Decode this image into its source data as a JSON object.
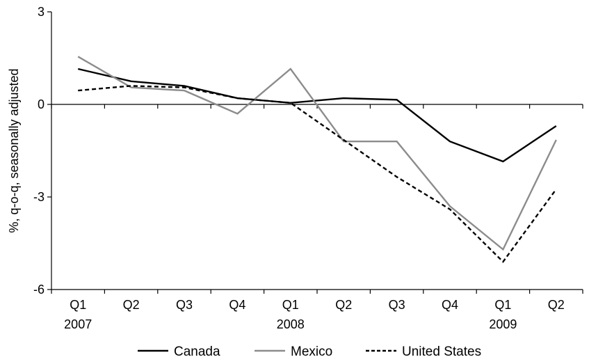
{
  "chart_data": {
    "type": "line",
    "title": "",
    "xlabel": "",
    "ylabel": "%, q-o-q, seasonally adjusted",
    "ylim": [
      -6,
      3
    ],
    "yticks": [
      3,
      0,
      -3,
      -6
    ],
    "y_tick_labels": [
      "3",
      "0",
      "-3",
      "-6"
    ],
    "categories": [
      "Q1",
      "Q2",
      "Q3",
      "Q4",
      "Q1",
      "Q2",
      "Q3",
      "Q4",
      "Q1",
      "Q2"
    ],
    "year_labels": [
      {
        "index": 0,
        "label": "2007"
      },
      {
        "index": 4,
        "label": "2008"
      },
      {
        "index": 8,
        "label": "2009"
      }
    ],
    "grid": false,
    "legend": "bottom",
    "series": [
      {
        "name": "Canada",
        "color": "#000000",
        "style": "solid",
        "values": [
          1.15,
          0.75,
          0.6,
          0.2,
          0.05,
          0.2,
          0.15,
          -1.2,
          -1.85,
          -0.7
        ]
      },
      {
        "name": "Mexico",
        "color": "#8c8c8c",
        "style": "solid",
        "values": [
          1.55,
          0.55,
          0.45,
          -0.3,
          1.15,
          -1.2,
          -1.2,
          -3.3,
          -4.7,
          -1.15
        ]
      },
      {
        "name": "United States",
        "color": "#000000",
        "style": "dashed",
        "values": [
          0.45,
          0.6,
          0.55,
          0.2,
          0.05,
          -1.15,
          -2.35,
          -3.4,
          -5.1,
          -2.75
        ]
      }
    ]
  }
}
